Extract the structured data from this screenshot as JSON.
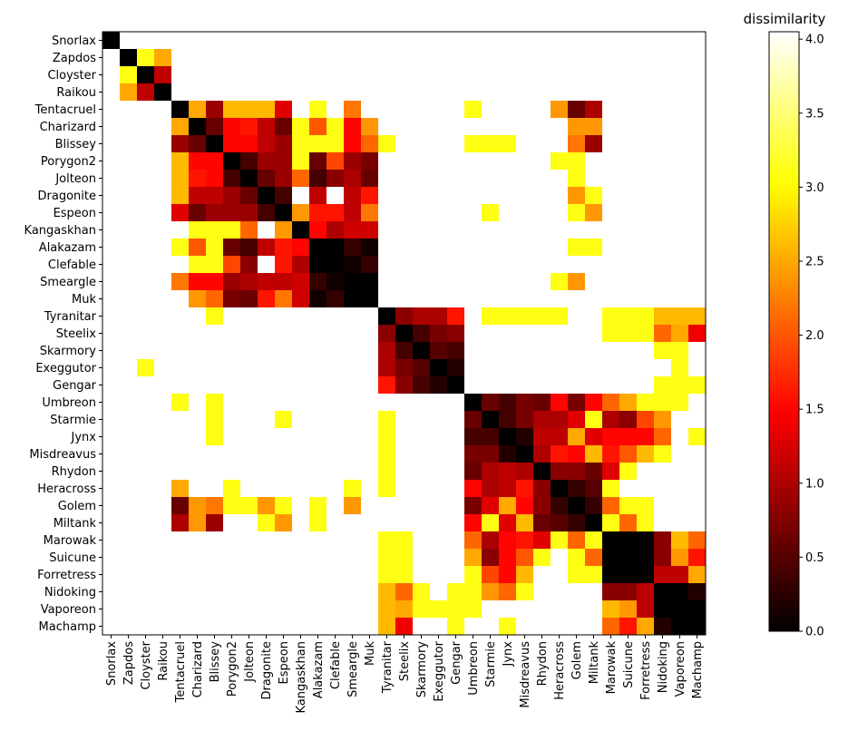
{
  "chart_data": {
    "type": "heatmap",
    "title": "",
    "xlabel": "",
    "ylabel": "",
    "colorbar": {
      "label": "dissimilarity",
      "colormap": "hot",
      "range": [
        0,
        4.05
      ],
      "ticks": [
        "0.0",
        "0.5",
        "1.0",
        "1.5",
        "2.0",
        "2.5",
        "3.0",
        "3.5",
        "4.0"
      ]
    },
    "labels": [
      "Snorlax",
      "Zapdos",
      "Cloyster",
      "Raikou",
      "Tentacruel",
      "Charizard",
      "Blissey",
      "Porygon2",
      "Jolteon",
      "Dragonite",
      "Espeon",
      "Kangaskhan",
      "Alakazam",
      "Clefable",
      "Smeargle",
      "Muk",
      "Tyranitar",
      "Steelix",
      "Skarmory",
      "Exeggutor",
      "Gengar",
      "Umbreon",
      "Starmie",
      "Jynx",
      "Misdreavus",
      "Rhydon",
      "Heracross",
      "Golem",
      "Miltank",
      "Marowak",
      "Suicune",
      "Forretress",
      "Nidoking",
      "Vaporeon",
      "Machamp"
    ],
    "blank_value": "none",
    "matrix": [
      [
        0.0,
        "none",
        "none",
        "none",
        "none",
        "none",
        "none",
        "none",
        "none",
        "none",
        "none",
        "none",
        "none",
        "none",
        "none",
        "none",
        "none",
        "none",
        "none",
        "none",
        "none",
        "none",
        "none",
        "none",
        "none",
        "none",
        "none",
        "none",
        "none",
        "none",
        "none",
        "none",
        "none",
        "none",
        "none"
      ],
      [
        "none",
        0.0,
        3.1,
        2.5,
        "none",
        "none",
        "none",
        "none",
        "none",
        "none",
        "none",
        "none",
        "none",
        "none",
        "none",
        "none",
        "none",
        "none",
        "none",
        "none",
        "none",
        "none",
        "none",
        "none",
        "none",
        "none",
        "none",
        "none",
        "none",
        "none",
        "none",
        "none",
        "none",
        "none",
        "none"
      ],
      [
        "none",
        3.1,
        0.0,
        1.1,
        "none",
        "none",
        "none",
        "none",
        "none",
        "none",
        "none",
        "none",
        "none",
        "none",
        "none",
        "none",
        "none",
        "none",
        "none",
        "none",
        "none",
        "none",
        "none",
        "none",
        "none",
        "none",
        "none",
        "none",
        "none",
        "none",
        "none",
        "none",
        "none",
        "none",
        "none"
      ],
      [
        "none",
        2.5,
        1.1,
        0.0,
        "none",
        "none",
        "none",
        "none",
        "none",
        "none",
        "none",
        "none",
        "none",
        "none",
        "none",
        "none",
        "none",
        "none",
        "none",
        "none",
        "none",
        "none",
        "none",
        "none",
        "none",
        "none",
        "none",
        "none",
        "none",
        "none",
        "none",
        "none",
        "none",
        "none",
        "none"
      ],
      [
        "none",
        "none",
        "none",
        "none",
        0.0,
        2.5,
        0.9,
        2.6,
        2.6,
        2.6,
        1.3,
        "none",
        3.1,
        "none",
        2.2,
        "none",
        "none",
        "none",
        "none",
        "none",
        "none",
        3.1,
        "none",
        "none",
        "none",
        "none",
        2.4,
        0.6,
        1.0,
        "none",
        "none",
        "none",
        "none",
        "none",
        "none"
      ],
      [
        "none",
        "none",
        "none",
        "none",
        2.5,
        0.0,
        0.6,
        1.5,
        1.6,
        1.1,
        0.6,
        3.1,
        2.0,
        3.1,
        1.5,
        2.4,
        "none",
        "none",
        "none",
        "none",
        "none",
        "none",
        "none",
        "none",
        "none",
        "none",
        "none",
        2.4,
        2.4,
        "none",
        "none",
        "none",
        "none",
        "none",
        "none"
      ],
      [
        "none",
        "none",
        "none",
        "none",
        0.9,
        0.6,
        0.0,
        1.5,
        1.5,
        1.1,
        0.9,
        3.1,
        3.1,
        3.1,
        1.5,
        2.1,
        3.1,
        "none",
        "none",
        "none",
        "none",
        3.1,
        3.1,
        3.1,
        "none",
        "none",
        "none",
        2.2,
        0.9,
        "none",
        "none",
        "none",
        "none",
        "none",
        "none"
      ],
      [
        "none",
        "none",
        "none",
        "none",
        2.6,
        1.5,
        1.5,
        0.0,
        0.4,
        0.9,
        0.9,
        3.1,
        0.6,
        1.9,
        0.9,
        0.7,
        "none",
        "none",
        "none",
        "none",
        "none",
        "none",
        "none",
        "none",
        "none",
        "none",
        3.1,
        3.1,
        "none",
        "none",
        "none",
        "none",
        "none",
        "none",
        "none"
      ],
      [
        "none",
        "none",
        "none",
        "none",
        2.6,
        1.6,
        1.5,
        0.4,
        0.0,
        0.6,
        0.9,
        2.1,
        0.4,
        0.8,
        1.0,
        0.6,
        "none",
        "none",
        "none",
        "none",
        "none",
        "none",
        "none",
        "none",
        "none",
        "none",
        "none",
        3.1,
        "none",
        "none",
        "none",
        "none",
        "none",
        "none",
        "none"
      ],
      [
        "none",
        "none",
        "none",
        "none",
        2.6,
        1.1,
        1.1,
        0.9,
        0.6,
        0.0,
        0.4,
        "none",
        1.1,
        "none",
        1.1,
        1.6,
        "none",
        "none",
        "none",
        "none",
        "none",
        "none",
        "none",
        "none",
        "none",
        "none",
        "none",
        2.4,
        3.1,
        "none",
        "none",
        "none",
        "none",
        "none",
        "none"
      ],
      [
        "none",
        "none",
        "none",
        "none",
        1.3,
        0.6,
        0.9,
        0.9,
        0.9,
        0.4,
        0.0,
        2.4,
        1.6,
        1.6,
        1.1,
        2.2,
        "none",
        "none",
        "none",
        "none",
        "none",
        "none",
        3.1,
        "none",
        "none",
        "none",
        "none",
        3.1,
        2.4,
        "none",
        "none",
        "none",
        "none",
        "none",
        "none"
      ],
      [
        "none",
        "none",
        "none",
        "none",
        "none",
        3.1,
        3.1,
        3.1,
        2.1,
        "none",
        2.4,
        0.0,
        1.5,
        1.0,
        1.2,
        1.2,
        "none",
        "none",
        "none",
        "none",
        "none",
        "none",
        "none",
        "none",
        "none",
        "none",
        "none",
        "none",
        "none",
        "none",
        "none",
        "none",
        "none",
        "none",
        "none"
      ],
      [
        "none",
        "none",
        "none",
        "none",
        3.1,
        2.0,
        3.1,
        0.6,
        0.4,
        1.1,
        1.6,
        1.5,
        0.0,
        0.0,
        0.3,
        0.1,
        "none",
        "none",
        "none",
        "none",
        "none",
        "none",
        "none",
        "none",
        "none",
        "none",
        "none",
        3.1,
        3.1,
        "none",
        "none",
        "none",
        "none",
        "none",
        "none"
      ],
      [
        "none",
        "none",
        "none",
        "none",
        "none",
        3.1,
        3.1,
        1.9,
        0.8,
        "none",
        1.6,
        1.0,
        0.0,
        0.0,
        0.1,
        0.3,
        "none",
        "none",
        "none",
        "none",
        "none",
        "none",
        "none",
        "none",
        "none",
        "none",
        "none",
        "none",
        "none",
        "none",
        "none",
        "none",
        "none",
        "none",
        "none"
      ],
      [
        "none",
        "none",
        "none",
        "none",
        2.2,
        1.5,
        1.5,
        0.9,
        1.0,
        1.1,
        1.1,
        1.2,
        0.3,
        0.1,
        0.0,
        0.0,
        "none",
        "none",
        "none",
        "none",
        "none",
        "none",
        "none",
        "none",
        "none",
        "none",
        3.1,
        2.4,
        "none",
        "none",
        "none",
        "none",
        "none",
        "none",
        "none"
      ],
      [
        "none",
        "none",
        "none",
        "none",
        "none",
        2.4,
        2.1,
        0.7,
        0.6,
        1.6,
        2.2,
        1.2,
        0.1,
        0.3,
        0.0,
        0.0,
        "none",
        "none",
        "none",
        "none",
        "none",
        "none",
        "none",
        "none",
        "none",
        "none",
        "none",
        "none",
        "none",
        "none",
        "none",
        "none",
        "none",
        "none",
        "none"
      ],
      [
        "none",
        "none",
        "none",
        "none",
        "none",
        "none",
        3.1,
        "none",
        "none",
        "none",
        "none",
        "none",
        "none",
        "none",
        "none",
        "none",
        0.0,
        0.8,
        1.0,
        1.0,
        1.6,
        "none",
        3.1,
        3.1,
        3.1,
        3.1,
        3.1,
        "none",
        "none",
        3.1,
        3.1,
        3.1,
        2.6,
        2.6,
        2.6
      ],
      [
        "none",
        "none",
        "none",
        "none",
        "none",
        "none",
        "none",
        "none",
        "none",
        "none",
        "none",
        "none",
        "none",
        "none",
        "none",
        "none",
        0.8,
        0.0,
        0.4,
        0.7,
        0.8,
        "none",
        "none",
        "none",
        "none",
        "none",
        "none",
        "none",
        "none",
        3.1,
        3.1,
        3.1,
        2.1,
        2.5,
        1.4
      ],
      [
        "none",
        "none",
        "none",
        "none",
        "none",
        "none",
        "none",
        "none",
        "none",
        "none",
        "none",
        "none",
        "none",
        "none",
        "none",
        "none",
        1.0,
        0.4,
        0.0,
        0.5,
        0.4,
        "none",
        "none",
        "none",
        "none",
        "none",
        "none",
        "none",
        "none",
        "none",
        "none",
        "none",
        3.1,
        3.1,
        "none"
      ],
      [
        "none",
        "none",
        3.1,
        "none",
        "none",
        "none",
        "none",
        "none",
        "none",
        "none",
        "none",
        "none",
        "none",
        "none",
        "none",
        "none",
        1.0,
        0.7,
        0.5,
        0.0,
        0.2,
        "none",
        "none",
        "none",
        "none",
        "none",
        "none",
        "none",
        "none",
        "none",
        "none",
        "none",
        "none",
        3.1,
        "none"
      ],
      [
        "none",
        "none",
        "none",
        "none",
        "none",
        "none",
        "none",
        "none",
        "none",
        "none",
        "none",
        "none",
        "none",
        "none",
        "none",
        "none",
        1.6,
        0.8,
        0.4,
        0.2,
        0.0,
        "none",
        "none",
        "none",
        "none",
        "none",
        "none",
        "none",
        "none",
        "none",
        "none",
        "none",
        3.1,
        3.1,
        3.1
      ],
      [
        "none",
        "none",
        "none",
        "none",
        3.1,
        "none",
        3.1,
        "none",
        "none",
        "none",
        "none",
        "none",
        "none",
        "none",
        "none",
        "none",
        "none",
        "none",
        "none",
        "none",
        "none",
        0.0,
        0.6,
        0.4,
        0.7,
        0.6,
        1.5,
        0.7,
        1.5,
        2.1,
        2.5,
        3.1,
        3.1,
        3.1,
        "none"
      ],
      [
        "none",
        "none",
        "none",
        "none",
        "none",
        "none",
        3.1,
        "none",
        "none",
        "none",
        3.1,
        "none",
        "none",
        "none",
        "none",
        "none",
        3.1,
        "none",
        "none",
        "none",
        "none",
        0.6,
        0.0,
        0.4,
        0.7,
        1.0,
        1.0,
        1.3,
        3.1,
        1.0,
        0.8,
        1.9,
        2.4,
        "none",
        "none"
      ],
      [
        "none",
        "none",
        "none",
        "none",
        "none",
        "none",
        3.1,
        "none",
        "none",
        "none",
        "none",
        "none",
        "none",
        "none",
        "none",
        "none",
        3.1,
        "none",
        "none",
        "none",
        "none",
        0.4,
        0.4,
        0.0,
        0.2,
        1.1,
        1.1,
        2.5,
        1.3,
        1.5,
        1.5,
        1.5,
        2.1,
        "none",
        3.1
      ],
      [
        "none",
        "none",
        "none",
        "none",
        "none",
        "none",
        "none",
        "none",
        "none",
        "none",
        "none",
        "none",
        "none",
        "none",
        "none",
        "none",
        3.1,
        "none",
        "none",
        "none",
        "none",
        0.7,
        0.7,
        0.2,
        0.0,
        1.0,
        1.6,
        1.5,
        2.6,
        1.6,
        2.0,
        2.6,
        3.1,
        "none",
        "none"
      ],
      [
        "none",
        "none",
        "none",
        "none",
        "none",
        "none",
        "none",
        "none",
        "none",
        "none",
        "none",
        "none",
        "none",
        "none",
        "none",
        "none",
        3.1,
        "none",
        "none",
        "none",
        "none",
        0.6,
        1.0,
        1.1,
        1.0,
        0.0,
        0.8,
        0.8,
        0.6,
        1.3,
        3.1,
        "none",
        "none",
        "none",
        "none"
      ],
      [
        "none",
        "none",
        "none",
        "none",
        2.5,
        "none",
        "none",
        3.1,
        "none",
        "none",
        "none",
        "none",
        "none",
        "none",
        3.1,
        "none",
        3.1,
        "none",
        "none",
        "none",
        "none",
        1.5,
        1.0,
        1.1,
        1.6,
        0.8,
        0.0,
        0.3,
        0.5,
        3.1,
        "none",
        "none",
        "none",
        "none",
        "none"
      ],
      [
        "none",
        "none",
        "none",
        "none",
        0.6,
        2.4,
        2.2,
        3.1,
        3.1,
        2.4,
        3.1,
        "none",
        3.1,
        "none",
        2.4,
        "none",
        "none",
        "none",
        "none",
        "none",
        "none",
        0.7,
        1.3,
        2.5,
        1.5,
        0.8,
        0.3,
        0.0,
        0.3,
        2.1,
        3.1,
        3.1,
        "none",
        "none",
        "none"
      ],
      [
        "none",
        "none",
        "none",
        "none",
        1.0,
        2.4,
        0.9,
        "none",
        "none",
        3.1,
        2.4,
        "none",
        3.1,
        "none",
        "none",
        "none",
        "none",
        "none",
        "none",
        "none",
        "none",
        1.5,
        3.1,
        1.3,
        2.6,
        0.6,
        0.5,
        0.3,
        0.0,
        3.1,
        2.1,
        3.1,
        "none",
        "none",
        "none"
      ],
      [
        "none",
        "none",
        "none",
        "none",
        "none",
        "none",
        "none",
        "none",
        "none",
        "none",
        "none",
        "none",
        "none",
        "none",
        "none",
        "none",
        3.1,
        3.1,
        "none",
        "none",
        "none",
        2.1,
        1.0,
        1.5,
        1.6,
        1.3,
        3.1,
        2.1,
        3.1,
        0.0,
        0.0,
        0.0,
        0.8,
        2.6,
        2.1
      ],
      [
        "none",
        "none",
        "none",
        "none",
        "none",
        "none",
        "none",
        "none",
        "none",
        "none",
        "none",
        "none",
        "none",
        "none",
        "none",
        "none",
        3.1,
        3.1,
        "none",
        "none",
        "none",
        2.5,
        0.8,
        1.5,
        2.0,
        3.1,
        "none",
        3.1,
        2.1,
        0.0,
        0.0,
        0.0,
        0.8,
        2.4,
        1.6
      ],
      [
        "none",
        "none",
        "none",
        "none",
        "none",
        "none",
        "none",
        "none",
        "none",
        "none",
        "none",
        "none",
        "none",
        "none",
        "none",
        "none",
        3.1,
        3.1,
        "none",
        "none",
        "none",
        3.1,
        1.9,
        1.5,
        2.6,
        "none",
        "none",
        3.1,
        3.1,
        0.0,
        0.0,
        0.0,
        1.1,
        1.1,
        2.5
      ],
      [
        "none",
        "none",
        "none",
        "none",
        "none",
        "none",
        "none",
        "none",
        "none",
        "none",
        "none",
        "none",
        "none",
        "none",
        "none",
        "none",
        2.6,
        2.1,
        3.1,
        "none",
        3.1,
        3.1,
        2.4,
        2.1,
        3.1,
        "none",
        "none",
        "none",
        "none",
        0.8,
        0.8,
        1.1,
        0.0,
        0.0,
        0.2
      ],
      [
        "none",
        "none",
        "none",
        "none",
        "none",
        "none",
        "none",
        "none",
        "none",
        "none",
        "none",
        "none",
        "none",
        "none",
        "none",
        "none",
        2.6,
        2.5,
        3.1,
        3.1,
        3.1,
        3.1,
        "none",
        "none",
        "none",
        "none",
        "none",
        "none",
        "none",
        2.6,
        2.4,
        1.1,
        0.0,
        0.0,
        0.0
      ],
      [
        "none",
        "none",
        "none",
        "none",
        "none",
        "none",
        "none",
        "none",
        "none",
        "none",
        "none",
        "none",
        "none",
        "none",
        "none",
        "none",
        2.6,
        1.4,
        "none",
        "none",
        3.1,
        "none",
        "none",
        3.1,
        "none",
        "none",
        "none",
        "none",
        "none",
        2.1,
        1.6,
        2.5,
        0.2,
        0.0,
        0.0
      ]
    ]
  }
}
